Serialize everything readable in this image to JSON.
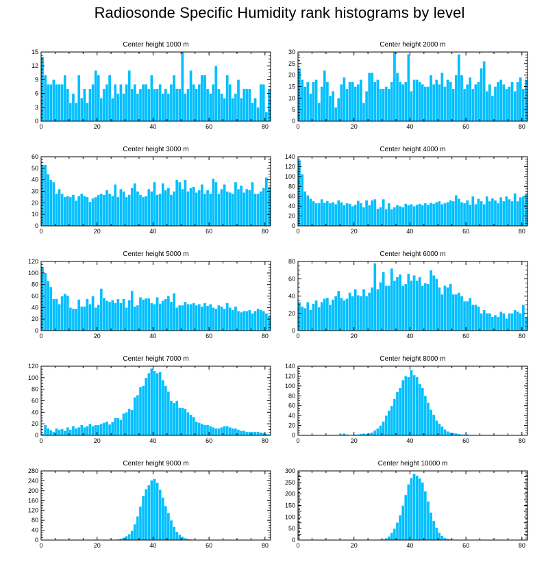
{
  "title": "Radiosonde Specific Humidity rank histograms by level",
  "chart_data": [
    {
      "type": "bar",
      "title": "Center height 1000 m",
      "xlim": [
        0,
        82
      ],
      "ylim": [
        0,
        15
      ],
      "yticks": [
        0,
        3,
        6,
        9,
        12,
        15
      ],
      "xticks": [
        0,
        20,
        40,
        60,
        80
      ],
      "values": [
        14,
        10,
        8,
        8,
        9,
        8,
        8,
        8,
        10,
        7,
        4,
        6,
        4,
        10,
        5,
        7,
        4,
        7,
        8,
        11,
        10,
        5,
        7,
        8,
        10,
        5,
        8,
        6,
        8,
        6,
        8,
        11,
        7,
        8,
        6,
        7,
        8,
        8,
        7,
        10,
        7,
        7,
        8,
        6,
        7,
        6,
        8,
        10,
        7,
        7,
        15,
        6,
        7,
        11,
        8,
        7,
        8,
        10,
        10,
        7,
        6,
        8,
        12,
        7,
        6,
        5,
        10,
        8,
        5,
        6,
        9,
        5,
        7,
        7,
        7,
        4,
        5,
        3,
        8,
        8,
        2,
        7
      ]
    },
    {
      "type": "bar",
      "title": "Center height 2000 m",
      "xlim": [
        0,
        82
      ],
      "ylim": [
        0,
        30
      ],
      "yticks": [
        0,
        5,
        10,
        15,
        20,
        25,
        30
      ],
      "xticks": [
        0,
        20,
        40,
        60,
        80
      ],
      "values": [
        23,
        18,
        15,
        17,
        12,
        17,
        18,
        8,
        15,
        22,
        17,
        11,
        13,
        6,
        10,
        16,
        19,
        14,
        17,
        17,
        15,
        16,
        18,
        8,
        13,
        21,
        21,
        17,
        18,
        14,
        14,
        15,
        14,
        17,
        30,
        21,
        17,
        16,
        17,
        29,
        13,
        18,
        18,
        17,
        16,
        15,
        15,
        20,
        16,
        18,
        16,
        21,
        15,
        18,
        17,
        14,
        20,
        29,
        20,
        14,
        16,
        19,
        14,
        16,
        17,
        23,
        26,
        13,
        16,
        11,
        15,
        17,
        18,
        16,
        14,
        15,
        17,
        13,
        17,
        19,
        14,
        18
      ]
    },
    {
      "type": "bar",
      "title": "Center height 3000 m",
      "xlim": [
        0,
        82
      ],
      "ylim": [
        0,
        60
      ],
      "yticks": [
        0,
        10,
        20,
        30,
        40,
        50,
        60
      ],
      "xticks": [
        0,
        20,
        40,
        60,
        80
      ],
      "values": [
        53,
        53,
        45,
        40,
        38,
        28,
        32,
        28,
        25,
        26,
        25,
        27,
        22,
        26,
        28,
        26,
        25,
        21,
        24,
        25,
        27,
        28,
        27,
        31,
        28,
        26,
        36,
        25,
        32,
        30,
        25,
        27,
        33,
        37,
        30,
        27,
        25,
        26,
        32,
        30,
        38,
        27,
        28,
        37,
        31,
        33,
        27,
        30,
        40,
        38,
        32,
        40,
        30,
        33,
        34,
        29,
        31,
        36,
        28,
        31,
        28,
        41,
        38,
        28,
        32,
        36,
        30,
        29,
        28,
        38,
        32,
        35,
        29,
        32,
        31,
        38,
        28,
        28,
        30,
        33,
        42,
        34
      ]
    },
    {
      "type": "bar",
      "title": "Center height 4000 m",
      "xlim": [
        0,
        82
      ],
      "ylim": [
        0,
        140
      ],
      "yticks": [
        0,
        20,
        40,
        60,
        80,
        100,
        120,
        140
      ],
      "xticks": [
        0,
        20,
        40,
        60,
        80
      ],
      "values": [
        133,
        105,
        70,
        62,
        55,
        50,
        46,
        46,
        54,
        47,
        50,
        46,
        48,
        44,
        52,
        48,
        42,
        46,
        45,
        40,
        43,
        51,
        46,
        38,
        52,
        42,
        52,
        54,
        35,
        38,
        54,
        34,
        46,
        34,
        38,
        42,
        40,
        38,
        45,
        42,
        44,
        40,
        43,
        45,
        42,
        46,
        43,
        47,
        45,
        48,
        50,
        44,
        46,
        48,
        52,
        50,
        62,
        55,
        48,
        46,
        52,
        43,
        60,
        44,
        55,
        50,
        44,
        60,
        50,
        56,
        52,
        46,
        58,
        50,
        60,
        54,
        50,
        66,
        50,
        58,
        60,
        64
      ]
    },
    {
      "type": "bar",
      "title": "Center height 5000 m",
      "xlim": [
        0,
        82
      ],
      "ylim": [
        0,
        120
      ],
      "yticks": [
        0,
        20,
        40,
        60,
        80,
        100,
        120
      ],
      "xticks": [
        0,
        20,
        40,
        60,
        80
      ],
      "values": [
        111,
        100,
        86,
        76,
        55,
        55,
        46,
        60,
        64,
        61,
        40,
        38,
        38,
        54,
        42,
        42,
        55,
        46,
        60,
        40,
        45,
        73,
        57,
        52,
        50,
        53,
        48,
        55,
        48,
        55,
        40,
        53,
        69,
        42,
        44,
        58,
        54,
        56,
        56,
        48,
        46,
        58,
        47,
        52,
        55,
        60,
        50,
        65,
        40,
        44,
        44,
        50,
        46,
        46,
        48,
        44,
        46,
        42,
        48,
        43,
        46,
        40,
        38,
        44,
        42,
        38,
        48,
        40,
        36,
        42,
        34,
        32,
        34,
        34,
        36,
        30,
        34,
        38,
        36,
        34,
        30,
        26
      ]
    },
    {
      "type": "bar",
      "title": "Center height 6000 m",
      "xlim": [
        0,
        82
      ],
      "ylim": [
        0,
        80
      ],
      "yticks": [
        0,
        20,
        40,
        60,
        80
      ],
      "xticks": [
        0,
        20,
        40,
        60,
        80
      ],
      "values": [
        33,
        28,
        26,
        33,
        24,
        31,
        35,
        27,
        33,
        37,
        38,
        30,
        36,
        40,
        46,
        38,
        35,
        37,
        44,
        40,
        48,
        41,
        40,
        48,
        40,
        44,
        50,
        78,
        48,
        56,
        68,
        52,
        52,
        72,
        58,
        62,
        65,
        52,
        54,
        66,
        58,
        64,
        58,
        62,
        52,
        55,
        54,
        70,
        64,
        60,
        50,
        42,
        52,
        50,
        54,
        42,
        42,
        44,
        40,
        34,
        34,
        38,
        30,
        30,
        28,
        20,
        24,
        20,
        20,
        16,
        18,
        16,
        22,
        20,
        14,
        20,
        20,
        24,
        22,
        20,
        30,
        16
      ]
    },
    {
      "type": "bar",
      "title": "Center height 7000 m",
      "xlim": [
        0,
        82
      ],
      "ylim": [
        0,
        120
      ],
      "yticks": [
        0,
        20,
        40,
        60,
        80,
        100,
        120
      ],
      "xticks": [
        0,
        20,
        40,
        60,
        80
      ],
      "values": [
        3,
        18,
        12,
        9,
        6,
        12,
        10,
        11,
        8,
        14,
        10,
        16,
        12,
        14,
        18,
        14,
        16,
        20,
        16,
        18,
        18,
        20,
        22,
        24,
        19,
        23,
        30,
        30,
        27,
        38,
        40,
        46,
        44,
        66,
        70,
        84,
        86,
        100,
        108,
        116,
        112,
        108,
        110,
        96,
        86,
        76,
        60,
        56,
        60,
        48,
        48,
        46,
        40,
        36,
        32,
        24,
        22,
        20,
        18,
        18,
        16,
        14,
        12,
        12,
        14,
        16,
        16,
        14,
        12,
        12,
        10,
        8,
        8,
        6,
        6,
        6,
        6,
        6,
        5,
        4,
        3,
        2
      ]
    },
    {
      "type": "bar",
      "title": "Center height 8000 m",
      "xlim": [
        0,
        82
      ],
      "ylim": [
        0,
        140
      ],
      "yticks": [
        0,
        20,
        40,
        60,
        80,
        100,
        120,
        140
      ],
      "xticks": [
        0,
        20,
        40,
        60,
        80
      ],
      "values": [
        0,
        0,
        0,
        0,
        0,
        0,
        0,
        0,
        0,
        0,
        0,
        0,
        0,
        0,
        1,
        2,
        4,
        2,
        0,
        1,
        2,
        2,
        3,
        4,
        3,
        4,
        6,
        10,
        14,
        20,
        28,
        40,
        50,
        60,
        74,
        88,
        96,
        112,
        120,
        118,
        132,
        122,
        118,
        104,
        96,
        80,
        66,
        52,
        42,
        30,
        24,
        18,
        12,
        8,
        6,
        5,
        4,
        3,
        2,
        2,
        2,
        1,
        1,
        1,
        0,
        0,
        0,
        0,
        0,
        0,
        0,
        0,
        0,
        0,
        0,
        0,
        0,
        0,
        0,
        0,
        0,
        0
      ]
    },
    {
      "type": "bar",
      "title": "Center height 9000 m",
      "xlim": [
        0,
        82
      ],
      "ylim": [
        0,
        280
      ],
      "yticks": [
        0,
        40,
        80,
        120,
        160,
        200,
        240,
        280
      ],
      "xticks": [
        0,
        20,
        40,
        60,
        80
      ],
      "values": [
        0,
        0,
        0,
        0,
        0,
        0,
        0,
        0,
        0,
        0,
        0,
        0,
        0,
        0,
        0,
        0,
        0,
        0,
        0,
        0,
        0,
        0,
        0,
        0,
        0,
        0,
        1,
        3,
        6,
        10,
        16,
        24,
        38,
        64,
        96,
        136,
        178,
        206,
        222,
        242,
        248,
        232,
        204,
        172,
        138,
        110,
        80,
        54,
        34,
        22,
        14,
        8,
        5,
        3,
        2,
        1,
        1,
        0,
        0,
        0,
        0,
        0,
        0,
        0,
        0,
        0,
        0,
        0,
        0,
        0,
        0,
        0,
        0,
        0,
        0,
        0,
        0,
        0,
        0,
        0,
        0,
        0
      ]
    },
    {
      "type": "bar",
      "title": "Center height 10000 m",
      "xlim": [
        0,
        82
      ],
      "ylim": [
        0,
        300
      ],
      "yticks": [
        0,
        25,
        50,
        75,
        100,
        125,
        150,
        175,
        200,
        225,
        250,
        275,
        300
      ],
      "yticklabels": [
        "0",
        "50",
        "100",
        "150",
        "200",
        "250",
        "300"
      ],
      "xticks": [
        0,
        20,
        40,
        60,
        80
      ],
      "values": [
        0,
        0,
        0,
        0,
        0,
        0,
        0,
        0,
        0,
        0,
        0,
        0,
        0,
        0,
        0,
        0,
        0,
        0,
        0,
        0,
        0,
        0,
        0,
        0,
        0,
        0,
        0,
        0,
        1,
        2,
        4,
        8,
        16,
        32,
        50,
        76,
        108,
        150,
        196,
        242,
        270,
        288,
        280,
        268,
        250,
        212,
        168,
        120,
        84,
        54,
        32,
        18,
        10,
        6,
        3,
        2,
        1,
        0,
        0,
        0,
        0,
        0,
        0,
        0,
        0,
        0,
        0,
        0,
        0,
        0,
        0,
        0,
        0,
        0,
        0,
        0,
        0,
        0,
        0,
        0,
        0,
        0
      ]
    }
  ]
}
